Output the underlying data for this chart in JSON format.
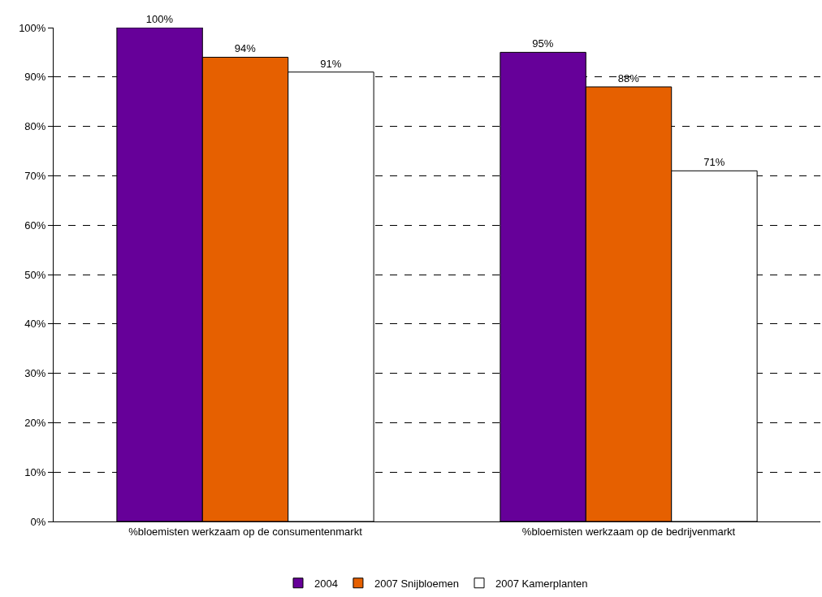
{
  "chart_data": {
    "type": "bar",
    "categories": [
      "%bloemisten werkzaam op de consumentenmarkt",
      "%bloemisten werkzaam op de bedrijvenmarkt"
    ],
    "series": [
      {
        "name": "2004",
        "color": "#660099",
        "values": [
          100,
          95
        ],
        "value_labels": [
          "100%",
          "95%"
        ]
      },
      {
        "name": "2007 Snijbloemen",
        "color": "#e66000",
        "values": [
          94,
          88
        ],
        "value_labels": [
          "94%",
          "88%"
        ]
      },
      {
        "name": "2007 Kamerplanten",
        "color": "#ffffff",
        "values": [
          91,
          71
        ],
        "value_labels": [
          "91%",
          "71%"
        ]
      }
    ],
    "ylim": [
      0,
      100
    ],
    "yticks": [
      {
        "value": 0,
        "label": "0%"
      },
      {
        "value": 10,
        "label": "10%"
      },
      {
        "value": 20,
        "label": "20%"
      },
      {
        "value": 30,
        "label": "30%"
      },
      {
        "value": 40,
        "label": "40%"
      },
      {
        "value": 50,
        "label": "50%"
      },
      {
        "value": 60,
        "label": "60%"
      },
      {
        "value": 70,
        "label": "70%"
      },
      {
        "value": 80,
        "label": "80%"
      },
      {
        "value": 90,
        "label": "90%"
      },
      {
        "value": 100,
        "label": "100%"
      }
    ],
    "grid": "y",
    "legend": "bottom"
  }
}
